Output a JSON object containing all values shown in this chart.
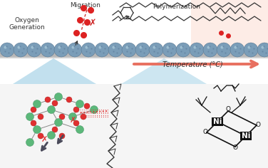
{
  "bg_color": "#ffffff",
  "lower_bg": "#f0f0f0",
  "temp_arrow_color": "#e87060",
  "temp_arrow_bg": "#fce8e2",
  "sphere_color": "#7a9db8",
  "sphere_edge": "#5a7a95",
  "lattice_green": "#5cb87a",
  "lattice_red": "#e03030",
  "text_migration": "Migration",
  "text_oxygen": "Oxygen\nGeneration",
  "text_poly": "Polymerization",
  "text_temp": "Temperature (°C)",
  "blue_zoom_color": "#90c8e0",
  "chain_color": "#333333",
  "ni_color": "#111111",
  "red_dot": "#dd2222",
  "dashed_red": "#cc2222",
  "gray_bar": "#a0a0a0",
  "dark_arrow": "#555566"
}
